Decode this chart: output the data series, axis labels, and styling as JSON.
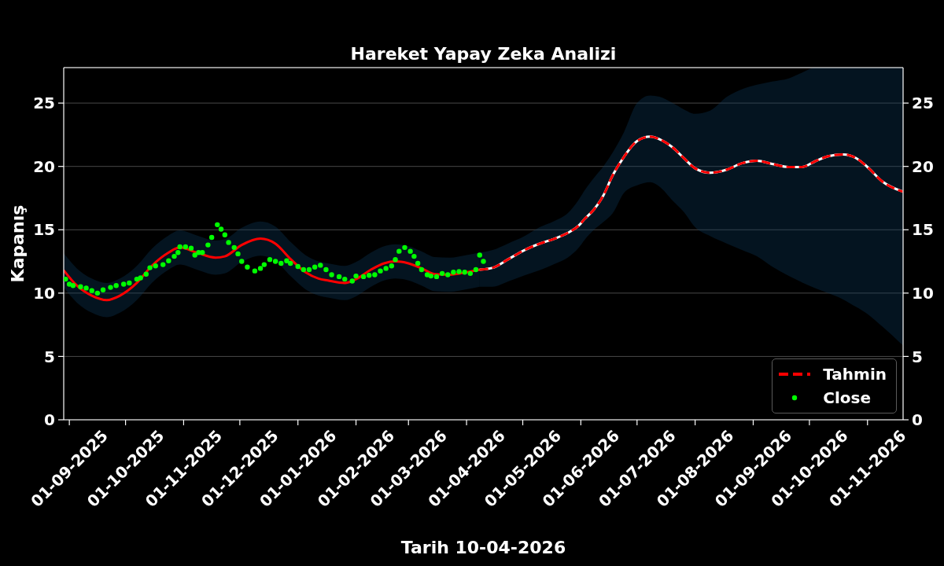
{
  "chart_data": {
    "type": "line",
    "title": "Hareket Yapay Zeka Analizi",
    "xlabel": "Tarih 10-04-2026",
    "ylabel": "Kapanış",
    "xlim": [
      "2025-08-29",
      "2026-11-20"
    ],
    "xticks": [
      {
        "value": "2025-09-01",
        "label": "01-09-2025"
      },
      {
        "value": "2025-10-01",
        "label": "01-10-2025"
      },
      {
        "value": "2025-11-01",
        "label": "01-11-2025"
      },
      {
        "value": "2025-12-01",
        "label": "01-12-2025"
      },
      {
        "value": "2026-01-01",
        "label": "01-01-2026"
      },
      {
        "value": "2026-02-01",
        "label": "01-02-2026"
      },
      {
        "value": "2026-03-01",
        "label": "01-03-2026"
      },
      {
        "value": "2026-04-01",
        "label": "01-04-2026"
      },
      {
        "value": "2026-05-01",
        "label": "01-05-2026"
      },
      {
        "value": "2026-06-01",
        "label": "01-06-2026"
      },
      {
        "value": "2026-07-01",
        "label": "01-07-2026"
      },
      {
        "value": "2026-08-01",
        "label": "01-08-2026"
      },
      {
        "value": "2026-09-01",
        "label": "01-09-2026"
      },
      {
        "value": "2026-10-01",
        "label": "01-10-2026"
      },
      {
        "value": "2026-11-01",
        "label": "01-11-2026"
      }
    ],
    "ylim": [
      0,
      27.8
    ],
    "yticks": [
      0,
      5,
      10,
      15,
      20,
      25
    ],
    "y2lim": [
      0,
      27.8
    ],
    "y2ticks": [
      0,
      5,
      10,
      15,
      20,
      25
    ],
    "grid": "y",
    "legend": "bottom right",
    "series": [
      {
        "color": "#ff0000",
        "line_style": "solid",
        "x": [
          "2025-08-29",
          "2025-09-05",
          "2025-09-13",
          "2025-09-21",
          "2025-09-28",
          "2025-10-07",
          "2025-10-15",
          "2025-10-24",
          "2025-10-30",
          "2025-11-08",
          "2025-11-18",
          "2025-11-23",
          "2025-12-02",
          "2025-12-12",
          "2025-12-20",
          "2025-12-28",
          "2026-01-05",
          "2026-01-12",
          "2026-01-17",
          "2026-01-26",
          "2026-02-01",
          "2026-02-09",
          "2026-02-16",
          "2026-02-22",
          "2026-03-01",
          "2026-03-08",
          "2026-03-15",
          "2026-03-23",
          "2026-04-01",
          "2026-04-08"
        ],
        "values": [
          11.8,
          10.6,
          9.8,
          9.45,
          9.8,
          10.8,
          12.15,
          13.2,
          13.6,
          13.2,
          12.8,
          12.9,
          13.8,
          14.3,
          13.9,
          12.7,
          11.65,
          11.15,
          11.0,
          10.8,
          11.1,
          11.85,
          12.35,
          12.5,
          12.35,
          11.95,
          11.5,
          11.45,
          11.65,
          11.85
        ],
        "lower": [
          10.45,
          9.25,
          8.45,
          8.1,
          8.45,
          9.45,
          10.8,
          11.85,
          12.25,
          11.85,
          11.45,
          11.55,
          12.45,
          12.95,
          12.55,
          11.35,
          10.3,
          9.8,
          9.65,
          9.45,
          9.75,
          10.5,
          11.0,
          11.15,
          11.0,
          10.6,
          10.15,
          10.1,
          10.3,
          10.5
        ],
        "upper": [
          13.15,
          11.95,
          11.15,
          10.8,
          11.15,
          12.15,
          13.5,
          14.55,
          14.95,
          14.55,
          14.15,
          14.25,
          15.15,
          15.65,
          15.25,
          14.05,
          13.0,
          12.5,
          12.35,
          12.15,
          12.45,
          13.2,
          13.7,
          13.85,
          13.7,
          13.3,
          12.85,
          12.8,
          13.0,
          13.2
        ]
      },
      {
        "color": "#ffffff",
        "line_style": "solid",
        "x": [
          "2026-04-08",
          "2026-04-15",
          "2026-04-23",
          "2026-05-02",
          "2026-05-10",
          "2026-05-18",
          "2026-05-25",
          "2026-05-31",
          "2026-06-03",
          "2026-06-08",
          "2026-06-13",
          "2026-06-18",
          "2026-06-24",
          "2026-07-01",
          "2026-07-08",
          "2026-07-13",
          "2026-07-20",
          "2026-07-26",
          "2026-08-01",
          "2026-08-09",
          "2026-08-18",
          "2026-08-26",
          "2026-09-03",
          "2026-09-11",
          "2026-09-20",
          "2026-09-27",
          "2026-10-04",
          "2026-10-11",
          "2026-10-19",
          "2026-10-26",
          "2026-11-01",
          "2026-11-09",
          "2026-11-20"
        ],
        "values": [
          11.85,
          12.0,
          12.65,
          13.4,
          13.9,
          14.3,
          14.75,
          15.35,
          15.85,
          16.6,
          17.7,
          19.3,
          20.75,
          22.0,
          22.35,
          22.15,
          21.5,
          20.65,
          19.85,
          19.5,
          19.75,
          20.25,
          20.45,
          20.2,
          19.95,
          19.95,
          20.4,
          20.8,
          20.95,
          20.65,
          19.95,
          18.8,
          18.0
        ],
        "lower": [
          10.5,
          10.5,
          10.9,
          11.4,
          11.8,
          12.3,
          12.8,
          13.6,
          14.2,
          15.0,
          15.6,
          16.3,
          17.9,
          18.5,
          18.75,
          18.4,
          17.3,
          16.4,
          15.2,
          14.5,
          13.9,
          13.4,
          12.9,
          12.1,
          11.35,
          10.85,
          10.4,
          10.0,
          9.5,
          8.9,
          8.35,
          7.35,
          5.85
        ],
        "upper": [
          13.2,
          13.4,
          13.9,
          14.5,
          15.2,
          15.7,
          16.3,
          17.4,
          18.1,
          19.1,
          20.0,
          21.1,
          22.7,
          25.0,
          25.6,
          25.5,
          25.0,
          24.5,
          24.15,
          24.4,
          25.5,
          26.1,
          26.45,
          26.7,
          26.95,
          27.4,
          27.8,
          27.8,
          27.8,
          27.8,
          27.8,
          27.8,
          27.8
        ]
      },
      {
        "name": "Tahmin",
        "color": "#ff0000",
        "line_style": "dashed",
        "x": [
          "2026-04-08",
          "2026-04-15",
          "2026-04-23",
          "2026-05-02",
          "2026-05-10",
          "2026-05-18",
          "2026-05-25",
          "2026-05-31",
          "2026-06-03",
          "2026-06-08",
          "2026-06-13",
          "2026-06-18",
          "2026-06-24",
          "2026-07-01",
          "2026-07-08",
          "2026-07-13",
          "2026-07-20",
          "2026-07-26",
          "2026-08-01",
          "2026-08-09",
          "2026-08-18",
          "2026-08-26",
          "2026-09-03",
          "2026-09-11",
          "2026-09-20",
          "2026-09-27",
          "2026-10-04",
          "2026-10-11",
          "2026-10-19",
          "2026-10-26",
          "2026-11-01",
          "2026-11-09",
          "2026-11-20"
        ],
        "values": [
          11.85,
          12.0,
          12.65,
          13.4,
          13.9,
          14.3,
          14.75,
          15.35,
          15.85,
          16.6,
          17.7,
          19.3,
          20.75,
          22.0,
          22.35,
          22.15,
          21.5,
          20.65,
          19.85,
          19.5,
          19.75,
          20.25,
          20.45,
          20.2,
          19.95,
          19.95,
          20.4,
          20.8,
          20.95,
          20.65,
          19.95,
          18.8,
          18.0
        ]
      },
      {
        "name": "Close",
        "type": "scatter",
        "color": "#00ff00",
        "marker": "circle",
        "x": [
          "2025-08-30",
          "2025-09-01",
          "2025-09-03",
          "2025-09-07",
          "2025-09-10",
          "2025-09-13",
          "2025-09-16",
          "2025-09-19",
          "2025-09-23",
          "2025-09-26",
          "2025-09-30",
          "2025-10-03",
          "2025-10-07",
          "2025-10-09",
          "2025-10-12",
          "2025-10-14",
          "2025-10-17",
          "2025-10-21",
          "2025-10-24",
          "2025-10-27",
          "2025-10-29",
          "2025-10-30",
          "2025-11-02",
          "2025-11-05",
          "2025-11-07",
          "2025-11-09",
          "2025-11-11",
          "2025-11-14",
          "2025-11-16",
          "2025-11-19",
          "2025-11-21",
          "2025-11-23",
          "2025-11-25",
          "2025-11-28",
          "2025-11-30",
          "2025-12-02",
          "2025-12-05",
          "2025-12-09",
          "2025-12-12",
          "2025-12-14",
          "2025-12-17",
          "2025-12-20",
          "2025-12-23",
          "2025-12-26",
          "2025-12-28",
          "2026-01-01",
          "2026-01-04",
          "2026-01-07",
          "2026-01-10",
          "2026-01-13",
          "2026-01-16",
          "2026-01-19",
          "2026-01-23",
          "2026-01-26",
          "2026-01-30",
          "2026-02-01",
          "2026-02-05",
          "2026-02-08",
          "2026-02-11",
          "2026-02-14",
          "2026-02-17",
          "2026-02-20",
          "2026-02-22",
          "2026-02-24",
          "2026-02-27",
          "2026-03-02",
          "2026-03-04",
          "2026-03-06",
          "2026-03-08",
          "2026-03-11",
          "2026-03-13",
          "2026-03-16",
          "2026-03-19",
          "2026-03-22",
          "2026-03-25",
          "2026-03-28",
          "2026-03-31",
          "2026-04-03",
          "2026-04-06",
          "2026-04-08",
          "2026-04-10"
        ],
        "values": [
          11.1,
          10.7,
          10.6,
          10.5,
          10.4,
          10.2,
          10.0,
          10.25,
          10.45,
          10.6,
          10.7,
          10.8,
          11.1,
          11.2,
          11.5,
          12.0,
          12.15,
          12.25,
          12.55,
          12.9,
          13.2,
          13.65,
          13.65,
          13.55,
          13.0,
          13.2,
          13.2,
          13.8,
          14.4,
          15.4,
          15.05,
          14.6,
          14.0,
          13.6,
          13.1,
          12.5,
          12.05,
          11.75,
          11.95,
          12.25,
          12.65,
          12.5,
          12.35,
          12.55,
          12.35,
          12.1,
          11.85,
          11.85,
          12.05,
          12.2,
          11.85,
          11.45,
          11.3,
          11.1,
          10.95,
          11.35,
          11.3,
          11.4,
          11.45,
          11.75,
          11.95,
          12.15,
          12.65,
          13.3,
          13.6,
          13.3,
          12.9,
          12.35,
          11.85,
          11.45,
          11.35,
          11.3,
          11.55,
          11.45,
          11.65,
          11.7,
          11.65,
          11.55,
          11.85,
          13.0,
          12.5
        ]
      }
    ]
  }
}
